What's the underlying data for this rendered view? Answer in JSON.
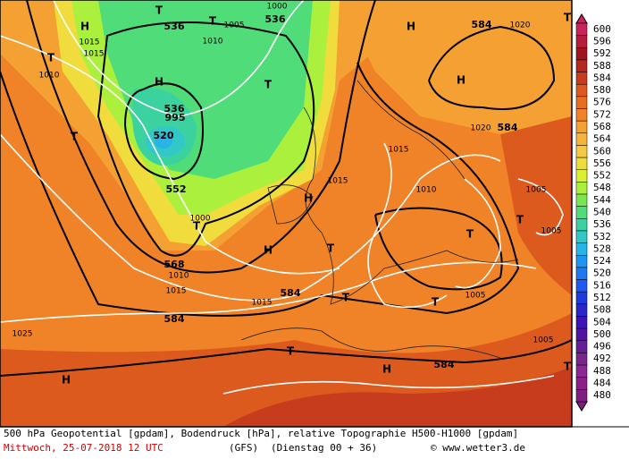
{
  "map": {
    "labels": [
      "H",
      "T",
      "T",
      "536",
      "536",
      "1005",
      "1000",
      "1010",
      "1015",
      "1015",
      "T",
      "1010",
      "T",
      "H",
      "536",
      "520",
      "995",
      "552",
      "T",
      "1020",
      "584",
      "584",
      "1020",
      "H",
      "H",
      "1015",
      "1015",
      "1010",
      "1005",
      "T",
      "T",
      "1005",
      "H",
      "T",
      "1000",
      "568",
      "1010",
      "1015",
      "H",
      "T",
      "T",
      "584",
      "1015",
      "T",
      "1005",
      "584",
      "1025",
      "T",
      "1005",
      "584",
      "H",
      "H",
      "T",
      "T"
    ]
  },
  "colorbar": {
    "values": [
      600,
      596,
      592,
      588,
      584,
      580,
      576,
      572,
      568,
      564,
      560,
      556,
      552,
      548,
      544,
      540,
      536,
      532,
      528,
      524,
      520,
      516,
      512,
      508,
      504,
      500,
      496,
      492,
      488,
      484,
      480
    ],
    "colors": [
      "#c8245a",
      "#b41e3c",
      "#a0141e",
      "#b4281e",
      "#c83c1e",
      "#dc5a1e",
      "#e66e1e",
      "#f08228",
      "#f5a032",
      "#f5b43c",
      "#f5c846",
      "#f0dc3c",
      "#dcf032",
      "#aaf03c",
      "#78e650",
      "#50dc78",
      "#3cd2a0",
      "#32c8c8",
      "#28b4e6",
      "#1e96f0",
      "#1e78f0",
      "#1e5af0",
      "#1e3cdc",
      "#2828c8",
      "#3c14b4",
      "#5014a0",
      "#641e96",
      "#78288c",
      "#8c2896",
      "#8c1e8c",
      "#7f1e7f"
    ]
  },
  "caption": {
    "line1": "500 hPa Geopotential [gpdam], Bodendruck [hPa], relative Topographie H500-H1000 [gpdam]",
    "date": "Mittwoch, 25-07-2018  12 UTC",
    "model": "(GFS)",
    "run": "(Dienstag 00 + 36)",
    "credit": "© www.wetter3.de"
  }
}
